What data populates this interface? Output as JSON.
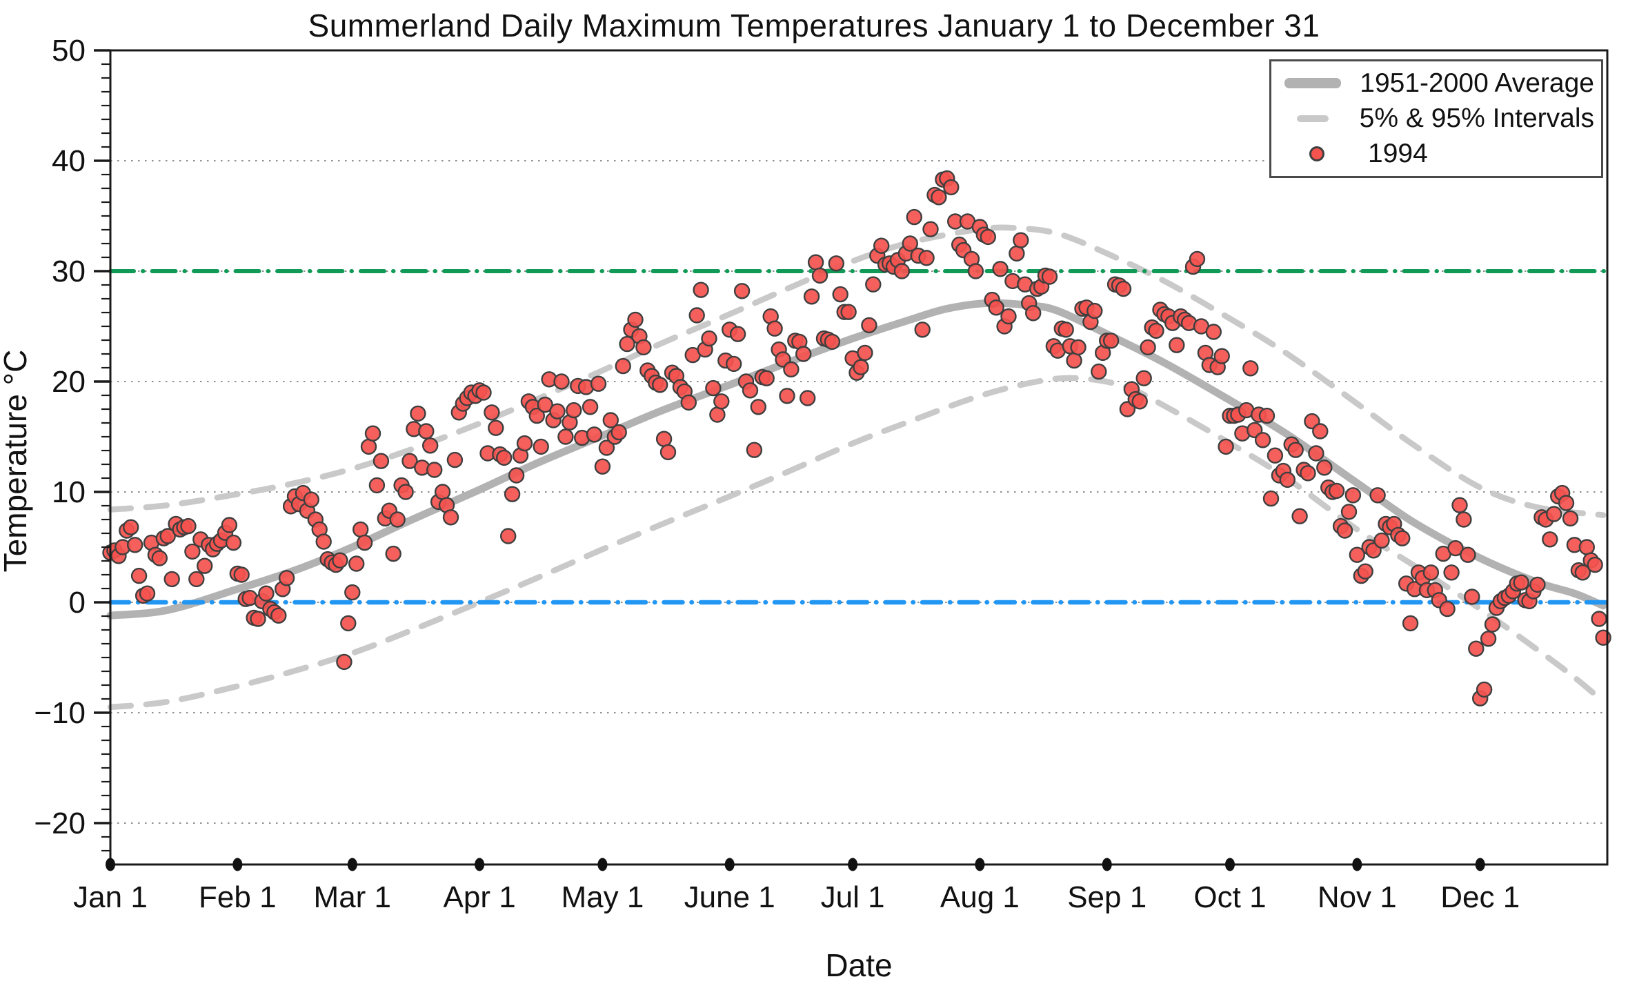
{
  "title": "Summerland Daily Maximum Temperatures January 1 to December 31",
  "axes": {
    "xlabel": "Date",
    "ylabel": "Temperature °C",
    "ylim": [
      -23.75,
      50
    ],
    "yticks": [
      {
        "value": 50,
        "label": "50"
      },
      {
        "value": 40,
        "label": "40"
      },
      {
        "value": 30,
        "label": "30"
      },
      {
        "value": 20,
        "label": "20"
      },
      {
        "value": 10,
        "label": "10"
      },
      {
        "value": 0,
        "label": "0"
      },
      {
        "value": -10,
        "label": "−10"
      },
      {
        "value": -20,
        "label": "−20"
      }
    ],
    "minor_tick_step": 1.25,
    "gridline_values": [
      40,
      30,
      20,
      10,
      0,
      -10,
      -20
    ],
    "xticks": [
      {
        "day": 1,
        "label": "Jan 1"
      },
      {
        "day": 32,
        "label": "Feb 1"
      },
      {
        "day": 60,
        "label": "Mar 1"
      },
      {
        "day": 91,
        "label": "Apr 1"
      },
      {
        "day": 121,
        "label": "May 1"
      },
      {
        "day": 152,
        "label": "June 1"
      },
      {
        "day": 182,
        "label": "Jul 1"
      },
      {
        "day": 213,
        "label": "Aug 1"
      },
      {
        "day": 244,
        "label": "Sep 1"
      },
      {
        "day": 274,
        "label": "Oct 1"
      },
      {
        "day": 305,
        "label": "Nov 1"
      },
      {
        "day": 335,
        "label": "Dec 1"
      }
    ]
  },
  "legend": {
    "position": "upper-right",
    "items": [
      {
        "label": "1951-2000 Average",
        "swatch": "thick-line"
      },
      {
        "label": "5% & 95% Intervals",
        "swatch": "dashed-line"
      },
      {
        "label": "1994",
        "swatch": "red-dot"
      }
    ]
  },
  "colors": {
    "scatter_fill": "#f4534e",
    "scatter_edge": "#3f3f3f",
    "average_line": "#b2b2b2",
    "interval_line": "#c9c9c9",
    "line_30c": "#119a57",
    "line_0c": "#2196f3",
    "grid": "#909090",
    "frame": "#1a1a1a",
    "text": "#111111"
  },
  "chart_data": {
    "type": "scatter",
    "title": "Summerland Daily Maximum Temperatures January 1 to December 31",
    "xlabel": "Date",
    "ylabel": "Temperature °C",
    "x_unit": "day of year (1 = Jan 1, 365 = Dec 31)",
    "ylim": [
      -23.75,
      50
    ],
    "grid": "horizontal dotted lines every 10 °C",
    "legend_position": "upper right",
    "reference_lines": [
      {
        "name": "30 °C threshold",
        "value": 30,
        "style": "dash-dot",
        "color": "#119a57"
      },
      {
        "name": "0 °C freezing line",
        "value": 0,
        "style": "dash-dot",
        "color": "#2196f3"
      }
    ],
    "series": [
      {
        "name": "1994",
        "type": "scatter",
        "color": "#f4534e",
        "day_start": 1,
        "values": [
          4.5,
          4.7,
          4.2,
          5.0,
          6.5,
          6.8,
          5.2,
          2.4,
          0.6,
          0.8,
          5.4,
          4.3,
          4.0,
          5.8,
          6.0,
          2.1,
          7.1,
          6.6,
          6.8,
          6.9,
          4.6,
          2.1,
          5.7,
          3.3,
          5.2,
          4.8,
          5.3,
          5.6,
          6.3,
          7.0,
          5.4,
          2.6,
          2.5,
          0.3,
          0.4,
          -1.4,
          -1.5,
          0.1,
          0.8,
          -0.6,
          -0.9,
          -1.2,
          1.2,
          2.2,
          8.7,
          9.6,
          8.9,
          9.9,
          8.3,
          9.3,
          7.5,
          6.6,
          5.5,
          3.9,
          3.6,
          3.4,
          3.8,
          -5.4,
          -1.9,
          0.9,
          3.5,
          6.6,
          5.4,
          14.1,
          15.3,
          10.6,
          12.8,
          7.6,
          8.3,
          4.4,
          7.5,
          10.6,
          10.0,
          12.8,
          15.7,
          17.1,
          12.2,
          15.5,
          14.2,
          12.0,
          9.1,
          10.0,
          8.8,
          7.7,
          12.9,
          17.2,
          18.0,
          18.5,
          19.0,
          18.7,
          19.2,
          19.0,
          13.5,
          17.2,
          15.8,
          13.4,
          13.1,
          6.0,
          9.8,
          11.5,
          13.3,
          14.4,
          18.2,
          17.7,
          16.9,
          14.1,
          17.9,
          20.2,
          16.5,
          17.3,
          20.0,
          15.0,
          16.3,
          17.4,
          19.6,
          14.9,
          19.5,
          17.7,
          15.2,
          19.8,
          12.3,
          14.0,
          16.5,
          15.0,
          15.4,
          21.4,
          23.4,
          24.7,
          25.6,
          24.1,
          23.1,
          21.0,
          20.5,
          19.9,
          19.7,
          14.8,
          13.6,
          20.8,
          20.5,
          19.5,
          19.1,
          18.1,
          22.4,
          26.0,
          28.3,
          22.9,
          23.9,
          19.4,
          17.0,
          18.2,
          21.9,
          24.7,
          21.6,
          24.3,
          28.2,
          20.0,
          19.2,
          13.8,
          17.7,
          20.4,
          20.3,
          25.9,
          24.8,
          22.9,
          22.0,
          18.7,
          21.1,
          23.7,
          23.6,
          22.5,
          18.5,
          27.7,
          30.8,
          29.6,
          23.9,
          23.8,
          23.6,
          30.7,
          27.9,
          26.3,
          26.3,
          22.1,
          20.8,
          21.3,
          22.6,
          25.1,
          28.8,
          31.4,
          32.3,
          30.6,
          30.7,
          30.4,
          31.0,
          30.0,
          31.6,
          32.5,
          34.9,
          31.4,
          24.7,
          31.2,
          33.8,
          36.9,
          36.7,
          38.3,
          38.4,
          37.6,
          34.5,
          32.4,
          31.9,
          34.5,
          31.1,
          30.0,
          34.0,
          33.3,
          33.1,
          27.4,
          26.7,
          30.2,
          25.0,
          25.9,
          29.1,
          31.6,
          32.8,
          28.8,
          27.1,
          26.2,
          28.4,
          28.6,
          29.6,
          29.5,
          23.2,
          22.8,
          24.8,
          24.7,
          23.2,
          21.9,
          23.1,
          26.6,
          26.7,
          25.4,
          26.4,
          20.9,
          22.6,
          23.7,
          23.7,
          28.8,
          28.7,
          28.4,
          17.5,
          19.3,
          18.4,
          18.2,
          20.3,
          23.1,
          24.9,
          24.6,
          26.5,
          26.1,
          25.9,
          25.3,
          23.3,
          25.9,
          25.6,
          25.3,
          30.4,
          31.1,
          25.0,
          22.6,
          21.5,
          24.5,
          21.3,
          22.3,
          14.1,
          16.9,
          16.9,
          17.0,
          15.3,
          17.4,
          21.2,
          15.6,
          17.0,
          14.7,
          16.9,
          9.4,
          13.3,
          11.5,
          11.9,
          11.1,
          14.3,
          13.8,
          7.8,
          12.0,
          11.7,
          16.4,
          13.5,
          15.5,
          12.2,
          10.4,
          10.0,
          10.1,
          6.9,
          6.5,
          8.2,
          9.7,
          4.3,
          2.4,
          2.8,
          5.0,
          4.7,
          9.7,
          5.6,
          7.1,
          6.8,
          7.1,
          6.1,
          5.8,
          1.7,
          -1.9,
          1.2,
          2.7,
          2.2,
          1.1,
          2.7,
          1.1,
          0.2,
          4.4,
          -0.6,
          2.7,
          4.9,
          8.8,
          7.5,
          4.3,
          0.5,
          -4.2,
          -8.7,
          -7.9,
          -3.3,
          -2.0,
          -0.5,
          0.1,
          0.4,
          0.6,
          1.0,
          1.7,
          1.8,
          0.2,
          0.1,
          1.0,
          1.6,
          7.7,
          7.5,
          5.7,
          8.0,
          9.6,
          9.9,
          9.0,
          7.6,
          5.2,
          2.9,
          2.7,
          5.0,
          3.8,
          3.4,
          -1.5,
          -3.2
        ]
      },
      {
        "name": "1951-2000 Average",
        "type": "line",
        "color": "#b2b2b2",
        "points": [
          [
            1,
            -1.2
          ],
          [
            15,
            -0.7
          ],
          [
            32,
            1.2
          ],
          [
            46,
            2.9
          ],
          [
            60,
            5.0
          ],
          [
            74,
            7.4
          ],
          [
            91,
            10.2
          ],
          [
            105,
            12.6
          ],
          [
            121,
            15.1
          ],
          [
            135,
            17.3
          ],
          [
            152,
            19.7
          ],
          [
            166,
            21.7
          ],
          [
            182,
            23.9
          ],
          [
            196,
            25.6
          ],
          [
            205,
            26.6
          ],
          [
            215,
            27.1
          ],
          [
            225,
            26.9
          ],
          [
            232,
            26.4
          ],
          [
            244,
            24.3
          ],
          [
            258,
            21.7
          ],
          [
            274,
            18.3
          ],
          [
            288,
            15.2
          ],
          [
            305,
            10.8
          ],
          [
            319,
            7.2
          ],
          [
            335,
            4.0
          ],
          [
            349,
            1.8
          ],
          [
            358,
            0.8
          ],
          [
            365,
            -0.3
          ]
        ]
      },
      {
        "name": "95% Interval",
        "type": "dashed_line",
        "color": "#c9c9c9",
        "points": [
          [
            1,
            8.4
          ],
          [
            15,
            8.8
          ],
          [
            32,
            9.8
          ],
          [
            46,
            10.8
          ],
          [
            60,
            12.1
          ],
          [
            74,
            13.8
          ],
          [
            91,
            16.2
          ],
          [
            105,
            18.4
          ],
          [
            121,
            21.0
          ],
          [
            135,
            23.4
          ],
          [
            152,
            26.1
          ],
          [
            166,
            28.4
          ],
          [
            182,
            30.9
          ],
          [
            196,
            32.6
          ],
          [
            213,
            33.8
          ],
          [
            222,
            33.9
          ],
          [
            232,
            33.4
          ],
          [
            244,
            31.6
          ],
          [
            258,
            29.1
          ],
          [
            274,
            25.7
          ],
          [
            288,
            22.5
          ],
          [
            305,
            18.0
          ],
          [
            319,
            14.2
          ],
          [
            335,
            10.4
          ],
          [
            349,
            8.6
          ],
          [
            365,
            7.9
          ]
        ]
      },
      {
        "name": "5% Interval",
        "type": "dashed_line",
        "color": "#c9c9c9",
        "points": [
          [
            1,
            -9.5
          ],
          [
            15,
            -9.0
          ],
          [
            32,
            -7.6
          ],
          [
            46,
            -6.2
          ],
          [
            60,
            -4.6
          ],
          [
            74,
            -2.6
          ],
          [
            91,
            0.0
          ],
          [
            105,
            2.2
          ],
          [
            121,
            4.8
          ],
          [
            135,
            7.0
          ],
          [
            152,
            9.6
          ],
          [
            166,
            11.8
          ],
          [
            182,
            14.4
          ],
          [
            196,
            16.4
          ],
          [
            213,
            18.7
          ],
          [
            227,
            20.0
          ],
          [
            237,
            20.3
          ],
          [
            248,
            19.6
          ],
          [
            258,
            17.8
          ],
          [
            274,
            14.4
          ],
          [
            288,
            11.2
          ],
          [
            305,
            6.6
          ],
          [
            319,
            3.3
          ],
          [
            335,
            -0.6
          ],
          [
            349,
            -4.3
          ],
          [
            358,
            -6.8
          ],
          [
            365,
            -9.0
          ]
        ]
      }
    ]
  }
}
